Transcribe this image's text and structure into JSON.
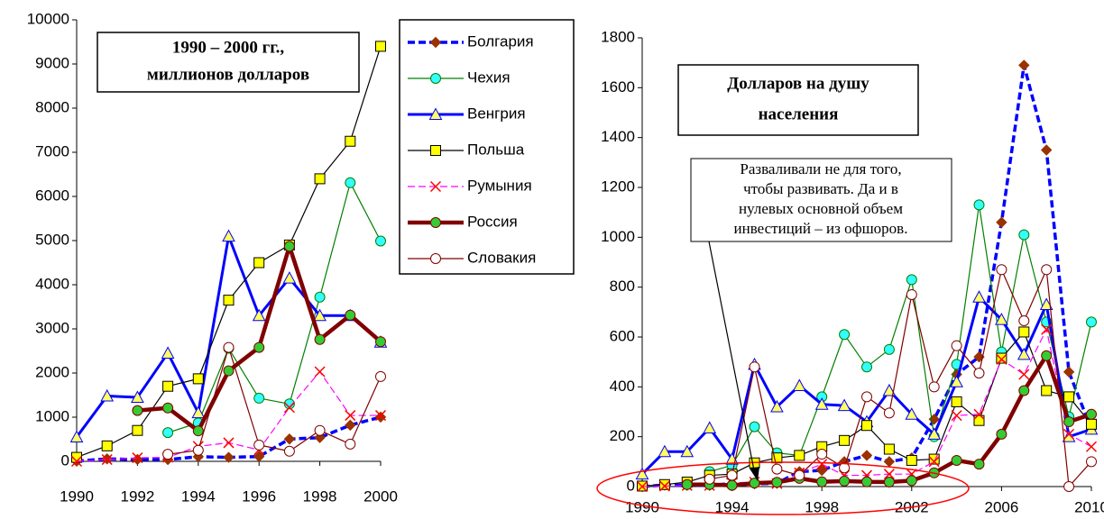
{
  "chart_data": [
    {
      "type": "line",
      "annotation": [
        "1990 – 2000 гг.,",
        "миллионов долларов"
      ],
      "x": [
        1990,
        1991,
        1992,
        1993,
        1994,
        1995,
        1996,
        1997,
        1998,
        1999,
        2000
      ],
      "xlim": [
        1990,
        2000
      ],
      "xticks": [
        1990,
        1992,
        1994,
        1996,
        1998,
        2000
      ],
      "ylim": [
        0,
        10000
      ],
      "yticks": [
        0,
        1000,
        2000,
        3000,
        4000,
        5000,
        6000,
        7000,
        8000,
        9000,
        10000
      ],
      "series": [
        {
          "name": "Болгария",
          "color": "#0000ff",
          "width": 3.5,
          "dash": true,
          "marker": "diamond",
          "marker_fill": "#993300",
          "values": [
            4,
            56,
            42,
            40,
            105,
            90,
            109,
            505,
            537,
            819,
            1002
          ]
        },
        {
          "name": "Чехия",
          "color": "#008000",
          "width": 1.2,
          "dash": false,
          "marker": "circle",
          "marker_fill": "#33ffff",
          "values": [
            null,
            null,
            null,
            650,
            870,
            2560,
            1430,
            1300,
            3720,
            6310,
            4990
          ]
        },
        {
          "name": "Венгрия",
          "color": "#0000ff",
          "width": 3,
          "dash": false,
          "marker": "triangle",
          "marker_fill": "#ffff66",
          "values": [
            550,
            1480,
            1450,
            2450,
            1100,
            5100,
            3300,
            4150,
            3300,
            3300,
            2700
          ]
        },
        {
          "name": "Польша",
          "color": "#000000",
          "width": 1.2,
          "dash": false,
          "marker": "square",
          "marker_fill": "#ffff00",
          "values": [
            90,
            350,
            700,
            1700,
            1870,
            3650,
            4500,
            4900,
            6400,
            7250,
            9400
          ]
        },
        {
          "name": "Румыния",
          "color": "#ff00ff",
          "width": 1.2,
          "dash": true,
          "marker": "x",
          "marker_fill": "#ff0000",
          "values": [
            0,
            40,
            80,
            90,
            340,
            420,
            260,
            1220,
            2030,
            1040,
            1040
          ]
        },
        {
          "name": "Россия",
          "color": "#800000",
          "width": 4.5,
          "dash": false,
          "marker": "circle",
          "marker_fill": "#33cc33",
          "values": [
            null,
            null,
            1150,
            1210,
            690,
            2050,
            2580,
            4870,
            2760,
            3310,
            2710
          ]
        },
        {
          "name": "Словакия",
          "color": "#800000",
          "width": 1.2,
          "dash": false,
          "marker": "circle",
          "marker_fill": "#ffffff",
          "values": [
            null,
            null,
            null,
            160,
            250,
            2580,
            370,
            230,
            700,
            390,
            1920
          ]
        }
      ]
    },
    {
      "type": "line",
      "title": [
        "Долларов на душу",
        "населения"
      ],
      "annotation": [
        "Разваливали не для того,",
        "чтобы развивать. Да и в",
        "нулевых основной объем",
        "инвестиций – из офшоров."
      ],
      "x": [
        1990,
        1991,
        1992,
        1993,
        1994,
        1995,
        1996,
        1997,
        1998,
        1999,
        2000,
        2001,
        2002,
        2003,
        2004,
        2005,
        2006,
        2007,
        2008,
        2009,
        2010
      ],
      "xlim": [
        1990,
        2010
      ],
      "xticks": [
        1990,
        1994,
        1998,
        2002,
        2006,
        2010
      ],
      "ylim": [
        0,
        1800
      ],
      "yticks": [
        0,
        200,
        400,
        600,
        800,
        1000,
        1200,
        1400,
        1600,
        1800
      ],
      "series": [
        {
          "color": "#0000ff",
          "width": 3.5,
          "dash": true,
          "marker": "diamond",
          "marker_fill": "#993300",
          "values": [
            0,
            6,
            5,
            5,
            12,
            11,
            13,
            60,
            65,
            100,
            125,
            100,
            115,
            270,
            450,
            520,
            1060,
            1690,
            1350,
            460,
            230
          ]
        },
        {
          "color": "#008000",
          "width": 1.2,
          "dash": false,
          "marker": "circle",
          "marker_fill": "#33ffff",
          "values": [
            null,
            null,
            null,
            60,
            85,
            240,
            135,
            125,
            360,
            610,
            480,
            550,
            830,
            200,
            490,
            1130,
            540,
            1010,
            660,
            280,
            660
          ]
        },
        {
          "color": "#0000ff",
          "width": 3,
          "dash": false,
          "marker": "triangle",
          "marker_fill": "#ffff66",
          "values": [
            50,
            140,
            140,
            235,
            110,
            490,
            320,
            405,
            330,
            325,
            260,
            385,
            290,
            210,
            420,
            760,
            670,
            530,
            730,
            200,
            230
          ]
        },
        {
          "color": "#000000",
          "width": 1.2,
          "dash": false,
          "marker": "square",
          "marker_fill": "#ffff00",
          "values": [
            2,
            8,
            18,
            45,
            50,
            95,
            115,
            125,
            160,
            185,
            245,
            150,
            105,
            110,
            340,
            265,
            515,
            620,
            385,
            360,
            250
          ]
        },
        {
          "color": "#ff00ff",
          "width": 1.2,
          "dash": true,
          "marker": "x",
          "marker_fill": "#ff0000",
          "values": [
            0,
            2,
            4,
            4,
            15,
            18,
            12,
            55,
            90,
            45,
            45,
            50,
            50,
            100,
            285,
            290,
            510,
            450,
            630,
            210,
            160
          ]
        },
        {
          "color": "#800000",
          "width": 4.5,
          "dash": false,
          "marker": "circle",
          "marker_fill": "#33cc33",
          "values": [
            null,
            null,
            8,
            8,
            5,
            14,
            17,
            33,
            19,
            22,
            19,
            18,
            24,
            55,
            105,
            90,
            210,
            385,
            525,
            260,
            290
          ]
        },
        {
          "color": "#800000",
          "width": 1.2,
          "dash": false,
          "marker": "circle",
          "marker_fill": "#ffffff",
          "values": [
            null,
            null,
            null,
            30,
            45,
            480,
            70,
            45,
            130,
            75,
            360,
            295,
            770,
            400,
            565,
            455,
            870,
            665,
            870,
            0,
            100
          ]
        }
      ]
    }
  ]
}
